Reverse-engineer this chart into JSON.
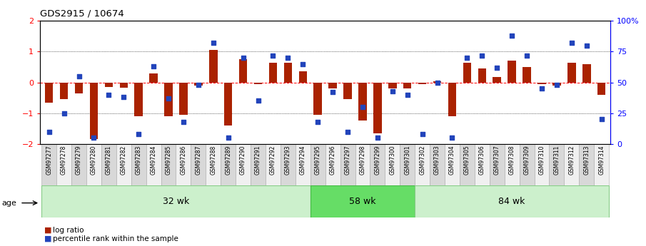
{
  "title": "GDS2915 / 10674",
  "samples": [
    "GSM97277",
    "GSM97278",
    "GSM97279",
    "GSM97280",
    "GSM97281",
    "GSM97282",
    "GSM97283",
    "GSM97284",
    "GSM97285",
    "GSM97286",
    "GSM97287",
    "GSM97288",
    "GSM97289",
    "GSM97290",
    "GSM97291",
    "GSM97292",
    "GSM97293",
    "GSM97294",
    "GSM97295",
    "GSM97296",
    "GSM97297",
    "GSM97298",
    "GSM97299",
    "GSM97300",
    "GSM97301",
    "GSM97302",
    "GSM97303",
    "GSM97304",
    "GSM97305",
    "GSM97306",
    "GSM97307",
    "GSM97308",
    "GSM97309",
    "GSM97310",
    "GSM97311",
    "GSM97312",
    "GSM97313",
    "GSM97314"
  ],
  "log_ratio": [
    -0.65,
    -0.55,
    -0.35,
    -1.85,
    -0.15,
    -0.18,
    -1.1,
    0.3,
    -1.1,
    -1.05,
    -0.1,
    1.05,
    -1.4,
    0.75,
    -0.05,
    0.65,
    0.65,
    0.35,
    -1.05,
    -0.2,
    -0.55,
    -1.25,
    -1.65,
    -0.2,
    -0.2,
    -0.05,
    0.03,
    -1.1,
    0.65,
    0.45,
    0.18,
    0.7,
    0.5,
    -0.05,
    -0.1,
    0.65,
    0.6,
    -0.4
  ],
  "percentile": [
    10,
    25,
    55,
    5,
    40,
    38,
    8,
    63,
    37,
    18,
    48,
    82,
    5,
    70,
    35,
    72,
    70,
    65,
    18,
    42,
    10,
    30,
    5,
    43,
    40,
    8,
    50,
    5,
    70,
    72,
    62,
    88,
    72,
    45,
    48,
    82,
    80,
    20
  ],
  "groups": [
    {
      "label": "32 wk",
      "start": 0,
      "end": 18,
      "color": "#ccf0cc",
      "edge": "#88cc88"
    },
    {
      "label": "58 wk",
      "start": 18,
      "end": 25,
      "color": "#66dd66",
      "edge": "#44bb44"
    },
    {
      "label": "84 wk",
      "start": 25,
      "end": 38,
      "color": "#ccf0cc",
      "edge": "#88cc88"
    }
  ],
  "bar_color": "#aa2200",
  "dot_color": "#2244bb",
  "ylim_left": [
    -2,
    2
  ],
  "ylim_right": [
    0,
    100
  ],
  "legend_bar": "log ratio",
  "legend_dot": "percentile rank within the sample",
  "age_label": "age",
  "col_colors": [
    "#d8d8d8",
    "#f0f0f0"
  ]
}
